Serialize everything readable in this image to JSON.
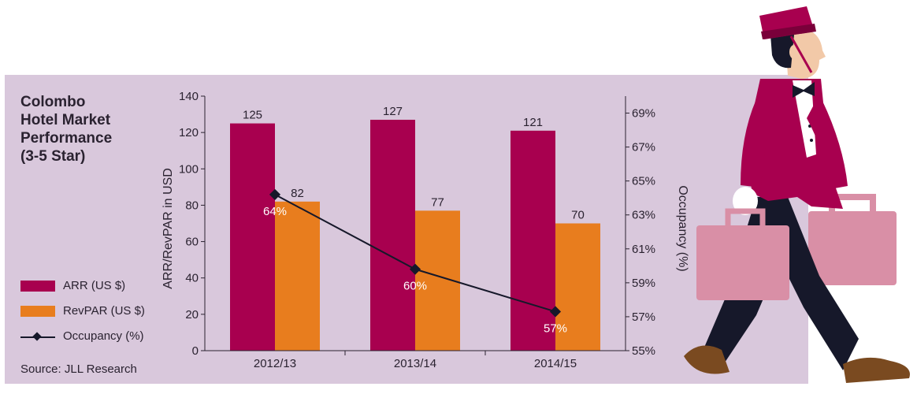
{
  "title_lines": [
    "Colombo",
    "Hotel Market",
    "Performance",
    "(3-5 Star)"
  ],
  "legend": {
    "arr": "ARR (US $)",
    "revpar": "RevPAR (US $)",
    "occupancy": "Occupancy (%)"
  },
  "source": "Source: JLL Research",
  "colors": {
    "arr": "#a8004f",
    "revpar": "#e87d1e",
    "occupancy": "#16182a",
    "panel": "#d9c8dc"
  },
  "chart_data": {
    "type": "bar",
    "categories": [
      "2012/13",
      "2013/14",
      "2014/15"
    ],
    "series": [
      {
        "name": "ARR (US $)",
        "values": [
          125,
          127,
          121
        ],
        "axis": "left",
        "labels": [
          "125",
          "127",
          "121"
        ]
      },
      {
        "name": "RevPAR (US $)",
        "values": [
          82,
          77,
          70
        ],
        "axis": "left",
        "labels": [
          "82",
          "77",
          "70"
        ]
      },
      {
        "name": "Occupancy (%)",
        "type": "line",
        "values": [
          64.2,
          59.8,
          57.3
        ],
        "axis": "right",
        "labels": [
          "64%",
          "60%",
          "57%"
        ]
      }
    ],
    "ylabel": "ARR/RevPAR in USD",
    "ylabel_right": "Occupancy (%)",
    "ylim": [
      0,
      140
    ],
    "yticks": [
      "0",
      "20",
      "40",
      "60",
      "80",
      "100",
      "120",
      "140"
    ],
    "ylim_right": [
      55,
      70
    ],
    "yticks_right": [
      "55%",
      "57%",
      "59%",
      "61%",
      "63%",
      "65%",
      "67%",
      "69%"
    ]
  },
  "illustration": "bellhop-carrying-suitcases"
}
